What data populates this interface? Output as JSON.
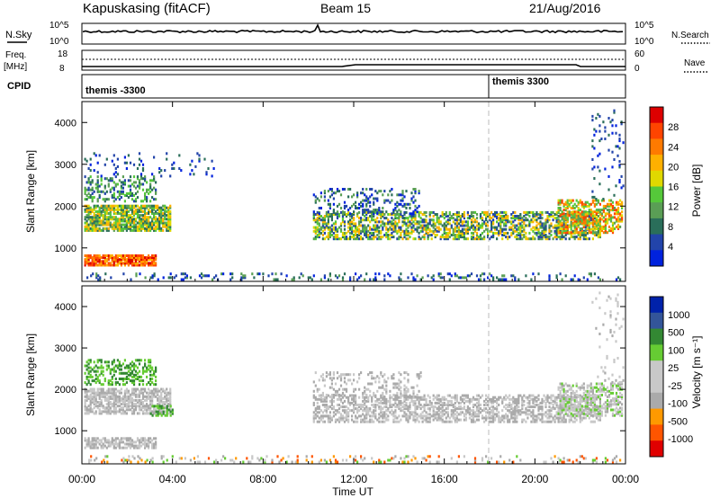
{
  "header": {
    "station": "Kapuskasing (fitACF)",
    "beam": "Beam 15",
    "date": "21/Aug/2016"
  },
  "panels": {
    "nsky": {
      "label": "N.Sky",
      "left_ticks": [
        "10^5",
        "10^0"
      ],
      "right_ticks": [
        "10^5",
        "10^0"
      ],
      "right_label": "N.Search"
    },
    "freq": {
      "label_line1": "Freq.",
      "label_line2": "[MHz]",
      "left_ticks": [
        "18",
        "8"
      ],
      "right_ticks": [
        "60",
        "0"
      ],
      "right_label": "Nave"
    },
    "cpid": {
      "label": "CPID",
      "entries": [
        "themis -3300",
        "themis 3300"
      ]
    }
  },
  "colors": {
    "power_scale": [
      "#0022dd",
      "#2244aa",
      "#2a6e5a",
      "#5a9e55",
      "#55c83a",
      "#e0d800",
      "#ffb000",
      "#ff7a00",
      "#ff4400",
      "#dd0000"
    ],
    "velocity_scale": [
      "#e00000",
      "#ff5500",
      "#ff9900",
      "#aaaaaa",
      "#c8c8c8",
      "#c8c8c8",
      "#66cc33",
      "#338833",
      "#335599",
      "#0022aa"
    ]
  },
  "chart_data": [
    {
      "type": "heatmap",
      "name": "power",
      "xlabel": "",
      "ylabel": "Slant Range [km]",
      "x_ticks": [
        "00:00",
        "04:00",
        "08:00",
        "12:00",
        "16:00",
        "20:00",
        "00:00"
      ],
      "y_ticks": [
        1000,
        2000,
        3000,
        4000
      ],
      "ylim": [
        200,
        4500
      ],
      "colorbar": {
        "label": "Power [dB]",
        "ticks": [
          4,
          8,
          12,
          16,
          20,
          24,
          28
        ]
      },
      "marker_time_hours": 18
    },
    {
      "type": "heatmap",
      "name": "velocity",
      "xlabel": "Time UT",
      "ylabel": "Slant Range [km]",
      "x_ticks": [
        "00:00",
        "04:00",
        "08:00",
        "12:00",
        "16:00",
        "20:00",
        "00:00"
      ],
      "y_ticks": [
        1000,
        2000,
        3000,
        4000
      ],
      "ylim": [
        200,
        4500
      ],
      "colorbar": {
        "label": "Velocity [m s⁻¹]",
        "ticks": [
          1000,
          500,
          100,
          25,
          -25,
          -100,
          -500,
          -1000
        ]
      },
      "marker_time_hours": 18
    }
  ]
}
